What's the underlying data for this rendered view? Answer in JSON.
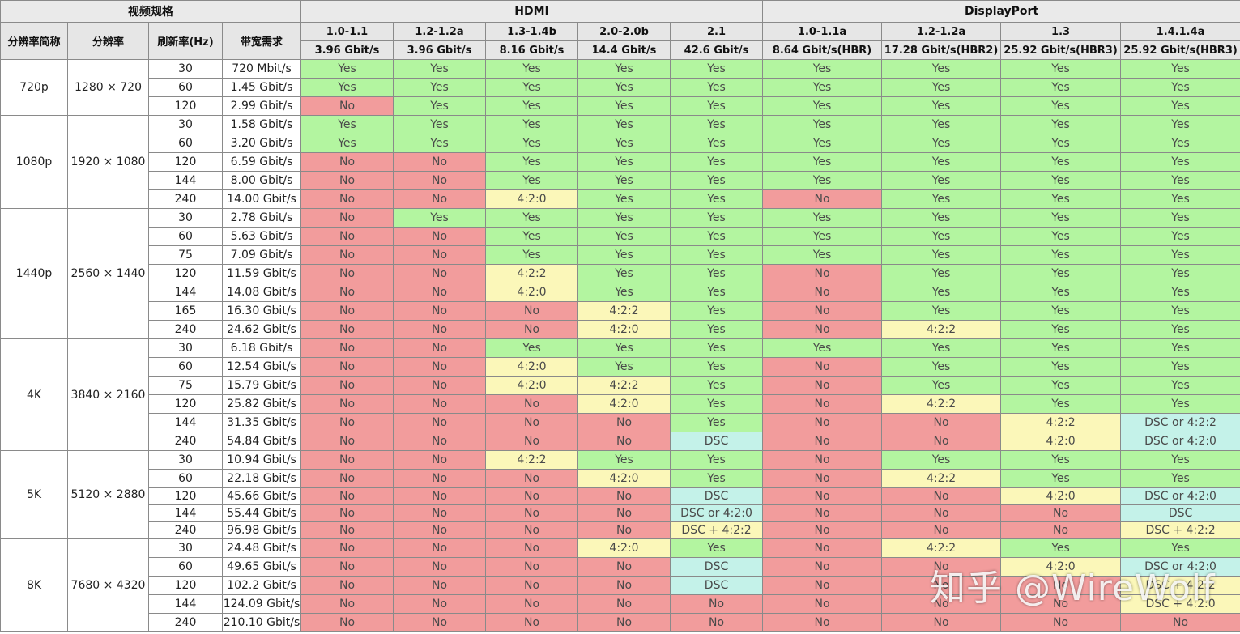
{
  "header": {
    "video_spec": "视频规格",
    "hdmi": "HDMI",
    "displayport": "DisplayPort",
    "col_short_name": "分辨率简称",
    "col_resolution": "分辨率",
    "col_refresh": "刷新率(Hz)",
    "col_bandwidth": "带宽需求"
  },
  "versions": [
    {
      "name": "1.0-1.1",
      "bw": "3.96 Gbit/s"
    },
    {
      "name": "1.2-1.2a",
      "bw": "3.96 Gbit/s"
    },
    {
      "name": "1.3-1.4b",
      "bw": "8.16 Gbit/s"
    },
    {
      "name": "2.0-2.0b",
      "bw": "14.4 Gbit/s"
    },
    {
      "name": "2.1",
      "bw": "42.6 Gbit/s"
    },
    {
      "name": "1.0-1.1a",
      "bw": "8.64 Gbit/s(HBR)"
    },
    {
      "name": "1.2-1.2a",
      "bw": "17.28 Gbit/s(HBR2)"
    },
    {
      "name": "1.3",
      "bw": "25.92 Gbit/s(HBR3)"
    },
    {
      "name": "1.4.1.4a",
      "bw": "25.92 Gbit/s(HBR3)"
    }
  ],
  "groups": [
    {
      "short": "720p",
      "res": "1280 × 720",
      "rows": [
        {
          "hz": "30",
          "bw": "720 Mbit/s",
          "cells": [
            "Yes",
            "Yes",
            "Yes",
            "Yes",
            "Yes",
            "Yes",
            "Yes",
            "Yes",
            "Yes"
          ]
        },
        {
          "hz": "60",
          "bw": "1.45 Gbit/s",
          "cells": [
            "Yes",
            "Yes",
            "Yes",
            "Yes",
            "Yes",
            "Yes",
            "Yes",
            "Yes",
            "Yes"
          ]
        },
        {
          "hz": "120",
          "bw": "2.99 Gbit/s",
          "cells": [
            "No",
            "Yes",
            "Yes",
            "Yes",
            "Yes",
            "Yes",
            "Yes",
            "Yes",
            "Yes"
          ]
        }
      ]
    },
    {
      "short": "1080p",
      "res": "1920 × 1080",
      "rows": [
        {
          "hz": "30",
          "bw": "1.58 Gbit/s",
          "cells": [
            "Yes",
            "Yes",
            "Yes",
            "Yes",
            "Yes",
            "Yes",
            "Yes",
            "Yes",
            "Yes"
          ]
        },
        {
          "hz": "60",
          "bw": "3.20 Gbit/s",
          "cells": [
            "Yes",
            "Yes",
            "Yes",
            "Yes",
            "Yes",
            "Yes",
            "Yes",
            "Yes",
            "Yes"
          ]
        },
        {
          "hz": "120",
          "bw": "6.59 Gbit/s",
          "cells": [
            "No",
            "No",
            "Yes",
            "Yes",
            "Yes",
            "Yes",
            "Yes",
            "Yes",
            "Yes"
          ]
        },
        {
          "hz": "144",
          "bw": "8.00 Gbit/s",
          "cells": [
            "No",
            "No",
            "Yes",
            "Yes",
            "Yes",
            "Yes",
            "Yes",
            "Yes",
            "Yes"
          ]
        },
        {
          "hz": "240",
          "bw": "14.00 Gbit/s",
          "cells": [
            "No",
            "No",
            "4:2:0",
            "Yes",
            "Yes",
            "No",
            "Yes",
            "Yes",
            "Yes"
          ]
        }
      ]
    },
    {
      "short": "1440p",
      "res": "2560 × 1440",
      "rows": [
        {
          "hz": "30",
          "bw": "2.78 Gbit/s",
          "cells": [
            "No",
            "Yes",
            "Yes",
            "Yes",
            "Yes",
            "Yes",
            "Yes",
            "Yes",
            "Yes"
          ]
        },
        {
          "hz": "60",
          "bw": "5.63 Gbit/s",
          "cells": [
            "No",
            "No",
            "Yes",
            "Yes",
            "Yes",
            "Yes",
            "Yes",
            "Yes",
            "Yes"
          ]
        },
        {
          "hz": "75",
          "bw": "7.09 Gbit/s",
          "cells": [
            "No",
            "No",
            "Yes",
            "Yes",
            "Yes",
            "Yes",
            "Yes",
            "Yes",
            "Yes"
          ]
        },
        {
          "hz": "120",
          "bw": "11.59 Gbit/s",
          "cells": [
            "No",
            "No",
            "4:2:2",
            "Yes",
            "Yes",
            "No",
            "Yes",
            "Yes",
            "Yes"
          ]
        },
        {
          "hz": "144",
          "bw": "14.08 Gbit/s",
          "cells": [
            "No",
            "No",
            "4:2:0",
            "Yes",
            "Yes",
            "No",
            "Yes",
            "Yes",
            "Yes"
          ]
        },
        {
          "hz": "165",
          "bw": "16.30 Gbit/s",
          "cells": [
            "No",
            "No",
            "No",
            "4:2:2",
            "Yes",
            "No",
            "Yes",
            "Yes",
            "Yes"
          ]
        },
        {
          "hz": "240",
          "bw": "24.62 Gbit/s",
          "cells": [
            "No",
            "No",
            "No",
            "4:2:0",
            "Yes",
            "No",
            "4:2:2",
            "Yes",
            "Yes"
          ]
        }
      ]
    },
    {
      "short": "4K",
      "res": "3840 × 2160",
      "rows": [
        {
          "hz": "30",
          "bw": "6.18 Gbit/s",
          "cells": [
            "No",
            "No",
            "Yes",
            "Yes",
            "Yes",
            "Yes",
            "Yes",
            "Yes",
            "Yes"
          ]
        },
        {
          "hz": "60",
          "bw": "12.54 Gbit/s",
          "cells": [
            "No",
            "No",
            "4:2:0",
            "Yes",
            "Yes",
            "No",
            "Yes",
            "Yes",
            "Yes"
          ]
        },
        {
          "hz": "75",
          "bw": "15.79 Gbit/s",
          "cells": [
            "No",
            "No",
            "4:2:0",
            "4:2:2",
            "Yes",
            "No",
            "Yes",
            "Yes",
            "Yes"
          ]
        },
        {
          "hz": "120",
          "bw": "25.82 Gbit/s",
          "cells": [
            "No",
            "No",
            "No",
            "4:2:0",
            "Yes",
            "No",
            "4:2:2",
            "Yes",
            "Yes"
          ]
        },
        {
          "hz": "144",
          "bw": "31.35 Gbit/s",
          "cells": [
            "No",
            "No",
            "No",
            "No",
            "Yes",
            "No",
            "No",
            "4:2:2",
            "DSC or 4:2:2"
          ]
        },
        {
          "hz": "240",
          "bw": "54.84 Gbit/s",
          "cells": [
            "No",
            "No",
            "No",
            "No",
            "DSC",
            "No",
            "No",
            "4:2:0",
            "DSC or 4:2:0"
          ]
        }
      ]
    },
    {
      "short": "5K",
      "res": "5120 × 2880",
      "rows": [
        {
          "hz": "30",
          "bw": "10.94 Gbit/s",
          "cells": [
            "No",
            "No",
            "4:2:2",
            "Yes",
            "Yes",
            "No",
            "Yes",
            "Yes",
            "Yes"
          ]
        },
        {
          "hz": "60",
          "bw": "22.18 Gbit/s",
          "cells": [
            "No",
            "No",
            "No",
            "4:2:0",
            "Yes",
            "No",
            "4:2:2",
            "Yes",
            "Yes"
          ]
        },
        {
          "hz": "120",
          "bw": "45.66 Gbit/s",
          "cells": [
            "No",
            "No",
            "No",
            "No",
            "DSC",
            "No",
            "No",
            "4:2:0",
            "DSC or 4:2:0"
          ]
        },
        {
          "hz": "144",
          "bw": "55.44 Gbit/s",
          "cells": [
            "No",
            "No",
            "No",
            "No",
            "DSC or 4:2:0",
            "No",
            "No",
            "No",
            "DSC"
          ]
        },
        {
          "hz": "240",
          "bw": "96.98 Gbit/s",
          "cells": [
            "No",
            "No",
            "No",
            "No",
            "DSC + 4:2:2",
            "No",
            "No",
            "No",
            "DSC + 4:2:2"
          ]
        }
      ]
    },
    {
      "short": "8K",
      "res": "7680 × 4320",
      "rows": [
        {
          "hz": "30",
          "bw": "24.48 Gbit/s",
          "cells": [
            "No",
            "No",
            "No",
            "4:2:0",
            "Yes",
            "No",
            "4:2:2",
            "Yes",
            "Yes"
          ]
        },
        {
          "hz": "60",
          "bw": "49.65 Gbit/s",
          "cells": [
            "No",
            "No",
            "No",
            "No",
            "DSC",
            "No",
            "No",
            "4:2:0",
            "DSC or 4:2:0"
          ]
        },
        {
          "hz": "120",
          "bw": "102.2 Gbit/s",
          "cells": [
            "No",
            "No",
            "No",
            "No",
            "DSC",
            "No",
            "No",
            "No",
            "DSC + 4:2:2"
          ]
        },
        {
          "hz": "144",
          "bw": "124.09 Gbit/s",
          "cells": [
            "No",
            "No",
            "No",
            "No",
            "No",
            "No",
            "No",
            "No",
            "DSC + 4:2:0"
          ]
        },
        {
          "hz": "240",
          "bw": "210.10 Gbit/s",
          "cells": [
            "No",
            "No",
            "No",
            "No",
            "No",
            "No",
            "No",
            "No",
            "No"
          ]
        }
      ]
    }
  ],
  "watermark": "知乎 @WireWolf"
}
